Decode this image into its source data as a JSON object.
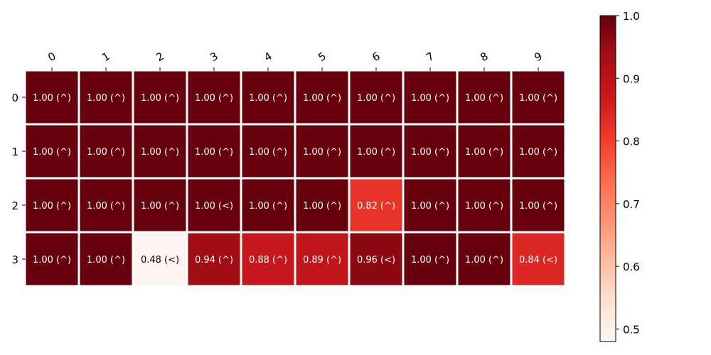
{
  "chart_data": {
    "type": "heatmap",
    "title": "",
    "xlabel": "",
    "ylabel": "",
    "x_tick_labels": [
      "0",
      "1",
      "2",
      "3",
      "4",
      "5",
      "6",
      "7",
      "8",
      "9"
    ],
    "y_tick_labels": [
      "0",
      "1",
      "2",
      "3"
    ],
    "values": [
      [
        1.0,
        1.0,
        1.0,
        1.0,
        1.0,
        1.0,
        1.0,
        1.0,
        1.0,
        1.0
      ],
      [
        1.0,
        1.0,
        1.0,
        1.0,
        1.0,
        1.0,
        1.0,
        1.0,
        1.0,
        1.0
      ],
      [
        1.0,
        1.0,
        1.0,
        1.0,
        1.0,
        1.0,
        0.82,
        1.0,
        1.0,
        1.0
      ],
      [
        1.0,
        1.0,
        0.48,
        0.94,
        0.88,
        0.89,
        0.96,
        1.0,
        1.0,
        0.84
      ]
    ],
    "cell_labels": [
      [
        "1.00 (^)",
        "1.00 (^)",
        "1.00 (^)",
        "1.00 (^)",
        "1.00 (^)",
        "1.00 (^)",
        "1.00 (^)",
        "1.00 (^)",
        "1.00 (^)",
        "1.00 (^)"
      ],
      [
        "1.00 (^)",
        "1.00 (^)",
        "1.00 (^)",
        "1.00 (^)",
        "1.00 (^)",
        "1.00 (^)",
        "1.00 (^)",
        "1.00 (^)",
        "1.00 (^)",
        "1.00 (^)"
      ],
      [
        "1.00 (^)",
        "1.00 (^)",
        "1.00 (^)",
        "1.00 (<)",
        "1.00 (^)",
        "1.00 (^)",
        "0.82 (^)",
        "1.00 (^)",
        "1.00 (^)",
        "1.00 (^)"
      ],
      [
        "1.00 (^)",
        "1.00 (^)",
        "0.48 (<)",
        "0.94 (^)",
        "0.88 (^)",
        "0.89 (^)",
        "0.96 (<)",
        "1.00 (^)",
        "1.00 (^)",
        "0.84 (<)"
      ]
    ],
    "colormap": "Reds",
    "vmin": 0.48,
    "vmax": 1.0,
    "colorbar": {
      "ticks": [
        0.5,
        0.6,
        0.7,
        0.8,
        0.9,
        1.0
      ],
      "tick_labels": [
        "0.5",
        "0.6",
        "0.7",
        "0.8",
        "0.9",
        "1.0"
      ],
      "placement": "right"
    },
    "x_axis_position": "top",
    "grid": false
  }
}
